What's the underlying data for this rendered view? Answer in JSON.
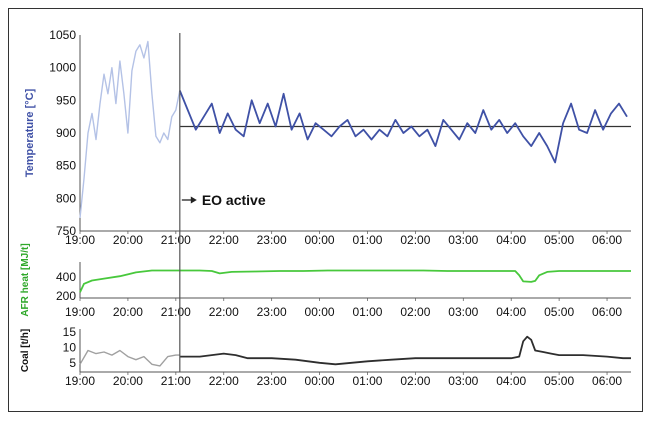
{
  "chart_data": [
    {
      "type": "line",
      "ylabel": "Temperature [°C]",
      "ylim": [
        750,
        1050
      ],
      "yticks": [
        750,
        800,
        850,
        900,
        950,
        1000,
        1050
      ],
      "xlim": [
        "19:00",
        "06:30"
      ],
      "xticks": [
        "19:00",
        "20:00",
        "21:00",
        "22:00",
        "23:00",
        "00:00",
        "01:00",
        "02:00",
        "03:00",
        "04:00",
        "05:00",
        "06:00"
      ],
      "annotation": "EO active",
      "event_time": "21:05",
      "setpoint": 910,
      "colors": {
        "before": "#b4c2e6",
        "after": "#3f51a6",
        "setpoint": "#333333"
      },
      "series": [
        {
          "x": [
            "19:00",
            "19:05",
            "19:10",
            "19:15",
            "19:20",
            "19:25",
            "19:30",
            "19:35",
            "19:40",
            "19:45",
            "19:50",
            "19:55",
            "20:00",
            "20:05",
            "20:10",
            "20:15",
            "20:20",
            "20:25",
            "20:30",
            "20:35",
            "20:40",
            "20:45",
            "20:50",
            "20:55",
            "21:00",
            "21:05"
          ],
          "values": [
            770,
            830,
            900,
            930,
            890,
            945,
            990,
            960,
            1000,
            945,
            1010,
            960,
            900,
            995,
            1025,
            1035,
            1015,
            1040,
            960,
            895,
            885,
            900,
            890,
            925,
            935,
            965
          ]
        },
        {
          "x": [
            "21:05",
            "21:15",
            "21:25",
            "21:35",
            "21:45",
            "21:55",
            "22:05",
            "22:15",
            "22:25",
            "22:35",
            "22:45",
            "22:55",
            "23:05",
            "23:15",
            "23:25",
            "23:35",
            "23:45",
            "23:55",
            "00:05",
            "00:15",
            "00:25",
            "00:35",
            "00:45",
            "00:55",
            "01:05",
            "01:15",
            "01:25",
            "01:35",
            "01:45",
            "01:55",
            "02:05",
            "02:15",
            "02:25",
            "02:35",
            "02:45",
            "02:55",
            "03:05",
            "03:15",
            "03:25",
            "03:35",
            "03:45",
            "03:55",
            "04:05",
            "04:15",
            "04:25",
            "04:35",
            "04:45",
            "04:55",
            "05:05",
            "05:15",
            "05:25",
            "05:35",
            "05:45",
            "05:55",
            "06:05",
            "06:15",
            "06:25"
          ],
          "values": [
            965,
            935,
            905,
            925,
            945,
            900,
            930,
            905,
            895,
            950,
            915,
            945,
            910,
            960,
            905,
            930,
            890,
            915,
            905,
            895,
            910,
            920,
            895,
            905,
            890,
            905,
            895,
            920,
            900,
            910,
            895,
            905,
            880,
            920,
            905,
            890,
            915,
            900,
            935,
            905,
            920,
            900,
            915,
            895,
            880,
            900,
            880,
            855,
            915,
            945,
            905,
            900,
            935,
            905,
            930,
            945,
            925
          ]
        }
      ]
    },
    {
      "type": "line",
      "ylabel": "AFR heat [MJ/t]",
      "ylim": [
        180,
        560
      ],
      "yticks": [
        200,
        400
      ],
      "colors": {
        "series": "#48c83c"
      },
      "series": [
        {
          "x": [
            "19:00",
            "19:05",
            "19:15",
            "19:30",
            "19:50",
            "20:10",
            "20:30",
            "21:00",
            "21:30",
            "21:45",
            "21:55",
            "22:10",
            "22:40",
            "23:10",
            "23:40",
            "00:10",
            "00:40",
            "01:10",
            "01:40",
            "02:10",
            "02:40",
            "03:10",
            "03:40",
            "04:05",
            "04:10",
            "04:15",
            "04:25",
            "04:30",
            "04:35",
            "04:45",
            "05:00",
            "05:30",
            "06:00",
            "06:30"
          ],
          "values": [
            240,
            330,
            365,
            385,
            410,
            450,
            470,
            470,
            470,
            465,
            440,
            455,
            460,
            465,
            465,
            470,
            470,
            470,
            470,
            470,
            465,
            465,
            465,
            465,
            420,
            355,
            350,
            360,
            420,
            455,
            465,
            465,
            465,
            465
          ]
        }
      ]
    },
    {
      "type": "line",
      "ylabel": "Coal [t/h]",
      "ylim": [
        2,
        16
      ],
      "yticks": [
        5,
        10,
        15
      ],
      "colors": {
        "before": "#a0a0a0",
        "after": "#2e2e2e"
      },
      "series": [
        {
          "x": [
            "19:00",
            "19:10",
            "19:20",
            "19:30",
            "19:40",
            "19:50",
            "20:00",
            "20:10",
            "20:20",
            "20:30",
            "20:40",
            "20:50",
            "21:00",
            "21:05"
          ],
          "values": [
            4.5,
            9,
            8,
            8.5,
            7.5,
            9,
            7,
            6,
            7,
            4.5,
            4,
            7,
            7.5,
            7.5
          ]
        },
        {
          "x": [
            "21:05",
            "21:30",
            "22:00",
            "22:15",
            "22:30",
            "23:00",
            "23:30",
            "00:00",
            "00:20",
            "00:40",
            "01:00",
            "01:30",
            "02:00",
            "02:30",
            "03:00",
            "03:30",
            "04:00",
            "04:10",
            "04:15",
            "04:20",
            "04:25",
            "04:30",
            "04:40",
            "04:50",
            "05:00",
            "05:30",
            "06:00",
            "06:20",
            "06:30"
          ],
          "values": [
            7,
            7,
            8,
            7.5,
            6.5,
            6.5,
            6,
            5,
            4.5,
            5,
            5.5,
            6,
            6.5,
            6.5,
            6.5,
            6.5,
            6.5,
            7,
            12,
            13.5,
            12.5,
            9,
            8.5,
            8,
            7.5,
            7.5,
            7,
            6.5,
            6.5
          ]
        }
      ]
    }
  ]
}
